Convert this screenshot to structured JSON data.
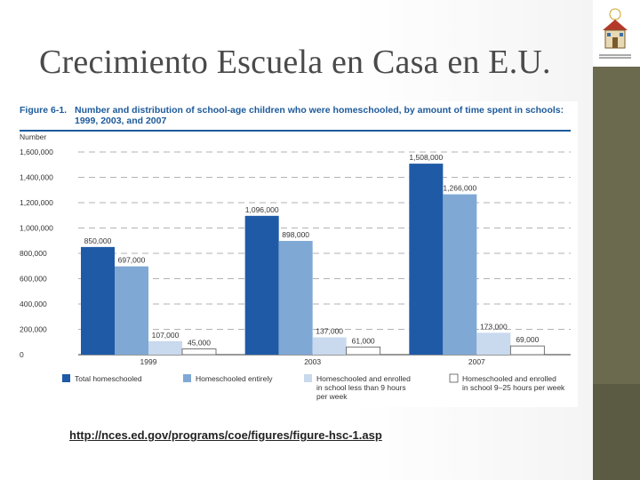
{
  "slide": {
    "title": "Crecimiento Escuela en Casa en E.U.",
    "source_url": "http://nces.ed.gov/programs/coe/figures/figure-hsc-1.asp"
  },
  "colors": {
    "accent_bar": "#6b6a4f",
    "series_total": "#1f5aa6",
    "series_entirely": "#7fa8d4",
    "series_lt9": "#c9d9ee",
    "series_9to25": "#ffffff"
  },
  "chart_data": {
    "type": "bar",
    "figure_label": "Figure 6-1.",
    "title": "Number and distribution of school-age children who were homeschooled, by amount of time spent in schools: 1999, 2003, and 2007",
    "ylabel": "Number",
    "xlabel": "",
    "ylim": [
      0,
      1600000
    ],
    "yticks": [
      0,
      200000,
      400000,
      600000,
      800000,
      1000000,
      1200000,
      1400000,
      1600000
    ],
    "ytick_labels": [
      "0",
      "200,000",
      "400,000",
      "600,000",
      "800,000",
      "1,000,000",
      "1,200,000",
      "1,400,000",
      "1,600,000"
    ],
    "categories": [
      "1999",
      "2003",
      "2007"
    ],
    "series": [
      {
        "name": "Total homeschooled",
        "values": [
          850000,
          1096000,
          1508000
        ],
        "labels": [
          "850,000",
          "1,096,000",
          "1,508,000"
        ]
      },
      {
        "name": "Homeschooled entirely",
        "values": [
          697000,
          898000,
          1266000
        ],
        "labels": [
          "697,000",
          "898,000",
          "1,266,000"
        ]
      },
      {
        "name": "Homeschooled and enrolled in school less than 9 hours per week",
        "values": [
          107000,
          137000,
          173000
        ],
        "labels": [
          "107,000",
          "137,000",
          "173,000"
        ]
      },
      {
        "name": "Homeschooled and enrolled in school 9–25 hours per week",
        "values": [
          45000,
          61000,
          69000
        ],
        "labels": [
          "45,000",
          "61,000",
          "69,000"
        ]
      }
    ],
    "legend_position": "bottom",
    "grid": true
  }
}
